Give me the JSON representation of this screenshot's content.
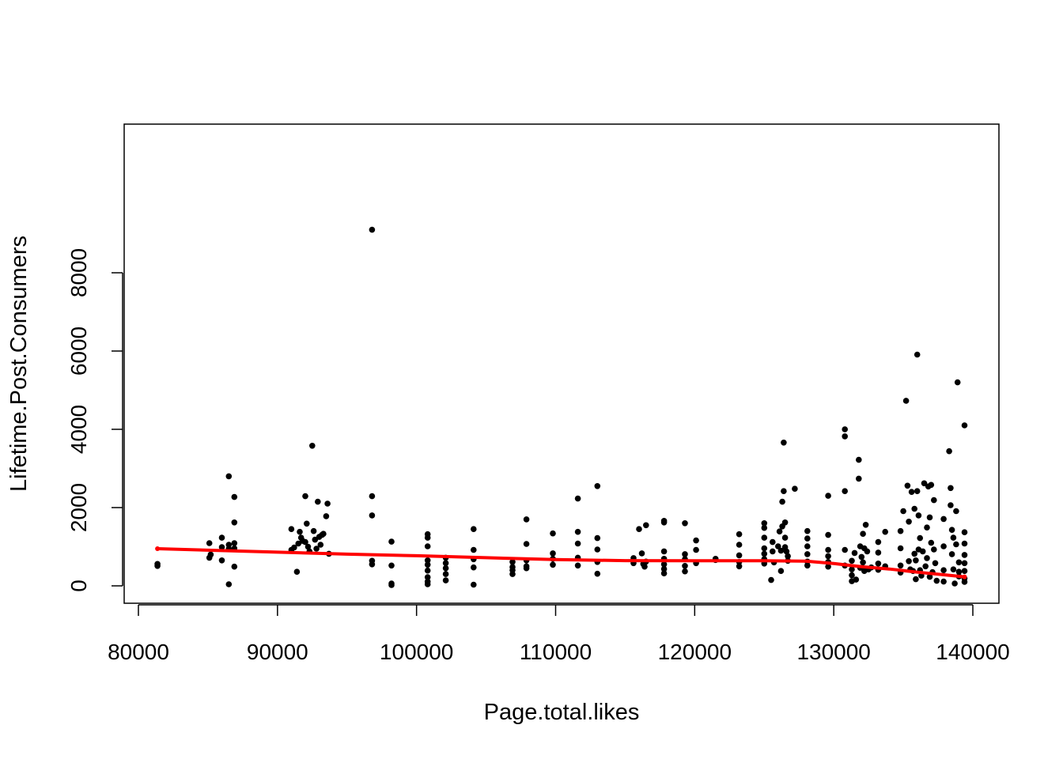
{
  "chart_data": {
    "type": "scatter",
    "title": "",
    "xlabel": "Page.total.likes",
    "ylabel": "Lifetime.Post.Consumers",
    "xlim": [
      80000,
      140000
    ],
    "ylim": [
      0,
      10000
    ],
    "x_ticks": [
      80000,
      90000,
      100000,
      110000,
      120000,
      130000,
      140000
    ],
    "y_ticks": [
      0,
      2000,
      4000,
      6000,
      8000
    ],
    "x_tick_labels": [
      "80000",
      "90000",
      "100000",
      "110000",
      "120000",
      "130000",
      "140000"
    ],
    "y_tick_labels": [
      "0",
      "2000",
      "4000",
      "6000",
      "8000"
    ],
    "grid": false,
    "legend": null,
    "point_color": "#000000",
    "fit_color": "#ff0000",
    "series": [
      {
        "kind": "points",
        "points": [
          [
            81370,
            510
          ],
          [
            81370,
            560
          ],
          [
            85100,
            720
          ],
          [
            85100,
            1090
          ],
          [
            85200,
            800
          ],
          [
            86000,
            650
          ],
          [
            86000,
            1230
          ],
          [
            86000,
            990
          ],
          [
            86500,
            2800
          ],
          [
            86500,
            950
          ],
          [
            86500,
            40
          ],
          [
            86500,
            1050
          ],
          [
            86900,
            2270
          ],
          [
            86900,
            1620
          ],
          [
            86900,
            1090
          ],
          [
            86900,
            490
          ],
          [
            86900,
            960
          ],
          [
            91000,
            1450
          ],
          [
            91000,
            920
          ],
          [
            91200,
            980
          ],
          [
            91400,
            360
          ],
          [
            91500,
            1080
          ],
          [
            91600,
            1380
          ],
          [
            91700,
            1230
          ],
          [
            91800,
            1150
          ],
          [
            92000,
            2290
          ],
          [
            92000,
            1120
          ],
          [
            92100,
            1590
          ],
          [
            92200,
            1000
          ],
          [
            92300,
            880
          ],
          [
            92500,
            3580
          ],
          [
            92600,
            1400
          ],
          [
            92700,
            1180
          ],
          [
            92800,
            950
          ],
          [
            92900,
            2150
          ],
          [
            93000,
            1250
          ],
          [
            93100,
            1050
          ],
          [
            93200,
            1300
          ],
          [
            93300,
            1330
          ],
          [
            93500,
            1780
          ],
          [
            93600,
            2100
          ],
          [
            93700,
            820
          ],
          [
            96800,
            9100
          ],
          [
            96800,
            2290
          ],
          [
            96800,
            1800
          ],
          [
            96800,
            640
          ],
          [
            96800,
            550
          ],
          [
            98200,
            1130
          ],
          [
            98200,
            520
          ],
          [
            98200,
            60
          ],
          [
            98200,
            20
          ],
          [
            100800,
            1320
          ],
          [
            100800,
            1230
          ],
          [
            100800,
            1010
          ],
          [
            100800,
            650
          ],
          [
            100800,
            540
          ],
          [
            100800,
            390
          ],
          [
            100800,
            220
          ],
          [
            100800,
            110
          ],
          [
            100800,
            40
          ],
          [
            102100,
            720
          ],
          [
            102100,
            580
          ],
          [
            102100,
            450
          ],
          [
            102100,
            300
          ],
          [
            102100,
            140
          ],
          [
            104100,
            1450
          ],
          [
            104100,
            920
          ],
          [
            104100,
            680
          ],
          [
            104100,
            470
          ],
          [
            104100,
            30
          ],
          [
            106900,
            610
          ],
          [
            106900,
            480
          ],
          [
            106900,
            400
          ],
          [
            106900,
            300
          ],
          [
            107900,
            1700
          ],
          [
            107900,
            1070
          ],
          [
            107900,
            650
          ],
          [
            107900,
            500
          ],
          [
            107900,
            450
          ],
          [
            109800,
            1340
          ],
          [
            109800,
            830
          ],
          [
            109800,
            690
          ],
          [
            109800,
            540
          ],
          [
            111600,
            2230
          ],
          [
            111600,
            1380
          ],
          [
            111600,
            1080
          ],
          [
            111600,
            720
          ],
          [
            111600,
            520
          ],
          [
            113000,
            2550
          ],
          [
            113000,
            1220
          ],
          [
            113000,
            930
          ],
          [
            113000,
            610
          ],
          [
            113000,
            310
          ],
          [
            115600,
            710
          ],
          [
            115600,
            630
          ],
          [
            115600,
            580
          ],
          [
            116000,
            1450
          ],
          [
            116200,
            830
          ],
          [
            116300,
            560
          ],
          [
            116400,
            490
          ],
          [
            116500,
            1550
          ],
          [
            116500,
            620
          ],
          [
            117800,
            1660
          ],
          [
            117800,
            1620
          ],
          [
            117800,
            880
          ],
          [
            117800,
            690
          ],
          [
            117800,
            550
          ],
          [
            117800,
            430
          ],
          [
            117800,
            320
          ],
          [
            119300,
            1600
          ],
          [
            119300,
            810
          ],
          [
            119300,
            680
          ],
          [
            119300,
            510
          ],
          [
            119300,
            370
          ],
          [
            120100,
            1160
          ],
          [
            120100,
            920
          ],
          [
            120100,
            580
          ],
          [
            121500,
            660
          ],
          [
            121500,
            690
          ],
          [
            123200,
            1320
          ],
          [
            123200,
            1050
          ],
          [
            123200,
            780
          ],
          [
            123200,
            610
          ],
          [
            123200,
            500
          ],
          [
            125000,
            1600
          ],
          [
            125000,
            1480
          ],
          [
            125000,
            1230
          ],
          [
            125000,
            960
          ],
          [
            125000,
            820
          ],
          [
            125000,
            680
          ],
          [
            125000,
            570
          ],
          [
            125500,
            150
          ],
          [
            125600,
            1120
          ],
          [
            125600,
            880
          ],
          [
            125700,
            600
          ],
          [
            126000,
            1010
          ],
          [
            126100,
            1390
          ],
          [
            126200,
            900
          ],
          [
            126200,
            380
          ],
          [
            126300,
            1520
          ],
          [
            126300,
            2150
          ],
          [
            126400,
            2420
          ],
          [
            126400,
            3660
          ],
          [
            126500,
            1620
          ],
          [
            126500,
            1230
          ],
          [
            126500,
            990
          ],
          [
            126600,
            880
          ],
          [
            126700,
            760
          ],
          [
            126700,
            640
          ],
          [
            127200,
            2480
          ],
          [
            128100,
            1400
          ],
          [
            128100,
            1210
          ],
          [
            128100,
            1010
          ],
          [
            128100,
            810
          ],
          [
            128100,
            620
          ],
          [
            128100,
            520
          ],
          [
            129600,
            2300
          ],
          [
            129600,
            1300
          ],
          [
            129600,
            920
          ],
          [
            129600,
            760
          ],
          [
            129600,
            610
          ],
          [
            129600,
            490
          ],
          [
            130800,
            4000
          ],
          [
            130800,
            3820
          ],
          [
            130800,
            2420
          ],
          [
            130800,
            920
          ],
          [
            130800,
            520
          ],
          [
            131300,
            640
          ],
          [
            131300,
            420
          ],
          [
            131300,
            270
          ],
          [
            131300,
            120
          ],
          [
            131500,
            840
          ],
          [
            131600,
            160
          ],
          [
            131800,
            3220
          ],
          [
            131800,
            2740
          ],
          [
            131900,
            1010
          ],
          [
            131900,
            460
          ],
          [
            132000,
            740
          ],
          [
            132100,
            1330
          ],
          [
            132100,
            600
          ],
          [
            132200,
            960
          ],
          [
            132200,
            380
          ],
          [
            132300,
            1560
          ],
          [
            132400,
            880
          ],
          [
            132500,
            420
          ],
          [
            132700,
            470
          ],
          [
            133200,
            1120
          ],
          [
            133200,
            850
          ],
          [
            133200,
            570
          ],
          [
            133200,
            410
          ],
          [
            133700,
            1380
          ],
          [
            133700,
            500
          ],
          [
            134800,
            1400
          ],
          [
            134800,
            960
          ],
          [
            134800,
            520
          ],
          [
            134800,
            340
          ],
          [
            135000,
            1910
          ],
          [
            135200,
            4730
          ],
          [
            135300,
            2560
          ],
          [
            135400,
            1640
          ],
          [
            135400,
            630
          ],
          [
            135500,
            420
          ],
          [
            135600,
            2400
          ],
          [
            135700,
            380
          ],
          [
            135800,
            1970
          ],
          [
            135800,
            820
          ],
          [
            135900,
            650
          ],
          [
            135900,
            170
          ],
          [
            136000,
            5910
          ],
          [
            136000,
            2420
          ],
          [
            136100,
            1800
          ],
          [
            136100,
            930
          ],
          [
            136200,
            1220
          ],
          [
            136200,
            400
          ],
          [
            136300,
            260
          ],
          [
            136400,
            880
          ],
          [
            136500,
            2620
          ],
          [
            136600,
            500
          ],
          [
            136700,
            1490
          ],
          [
            136700,
            710
          ],
          [
            136800,
            2540
          ],
          [
            136900,
            1750
          ],
          [
            136900,
            230
          ],
          [
            137000,
            2580
          ],
          [
            137000,
            1100
          ],
          [
            137100,
            350
          ],
          [
            137200,
            2190
          ],
          [
            137200,
            930
          ],
          [
            137300,
            580
          ],
          [
            137400,
            130
          ],
          [
            137900,
            1710
          ],
          [
            137900,
            1010
          ],
          [
            137900,
            400
          ],
          [
            137900,
            110
          ],
          [
            138300,
            3440
          ],
          [
            138400,
            2500
          ],
          [
            138400,
            2060
          ],
          [
            138500,
            1430
          ],
          [
            138500,
            810
          ],
          [
            138600,
            1230
          ],
          [
            138600,
            420
          ],
          [
            138700,
            60
          ],
          [
            138800,
            1910
          ],
          [
            138800,
            1060
          ],
          [
            138900,
            5200
          ],
          [
            139000,
            600
          ],
          [
            139000,
            360
          ],
          [
            139000,
            240
          ],
          [
            139400,
            4100
          ],
          [
            139400,
            1370
          ],
          [
            139400,
            1080
          ],
          [
            139400,
            790
          ],
          [
            139400,
            580
          ],
          [
            139400,
            380
          ],
          [
            139400,
            190
          ],
          [
            139400,
            100
          ]
        ]
      },
      {
        "kind": "fit-line",
        "points": [
          [
            81370,
            950
          ],
          [
            90000,
            860
          ],
          [
            95000,
            810
          ],
          [
            100000,
            770
          ],
          [
            105000,
            720
          ],
          [
            110000,
            670
          ],
          [
            115000,
            645
          ],
          [
            120000,
            640
          ],
          [
            125000,
            640
          ],
          [
            128000,
            630
          ],
          [
            130000,
            570
          ],
          [
            132000,
            490
          ],
          [
            134000,
            430
          ],
          [
            136000,
            350
          ],
          [
            138000,
            280
          ],
          [
            139400,
            230
          ]
        ]
      }
    ]
  }
}
